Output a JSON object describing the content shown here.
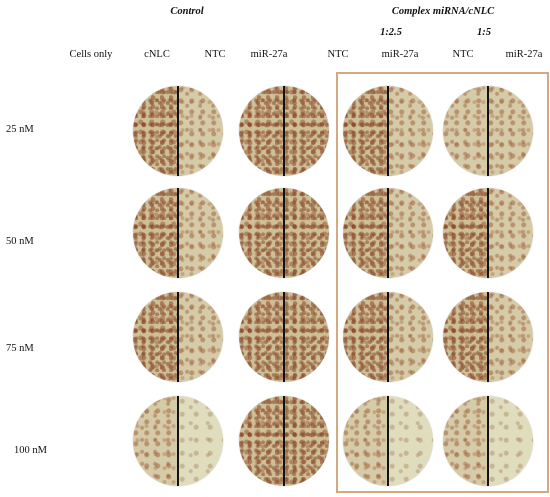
{
  "header": {
    "control": "Control",
    "complex": "Complex miRNA/cNLC",
    "ratio_1": "1:2.5",
    "ratio_2": "1:5"
  },
  "columns": [
    "Cells only",
    "cNLC",
    "NTC",
    "miR-27a",
    "NTC",
    "miR-27a",
    "NTC",
    "miR-27a"
  ],
  "rows": [
    "25 nM",
    "50 nM",
    "75 nM",
    "100 nM"
  ],
  "colors": {
    "highlight_frame": "#d3a982",
    "divider": "#111111"
  }
}
